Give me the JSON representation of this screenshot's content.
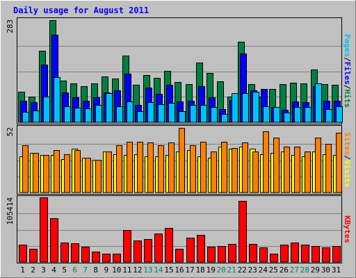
{
  "chart_data": {
    "type": "bar",
    "title": "Daily usage for August 2011",
    "categories": [
      "1",
      "2",
      "3",
      "4",
      "5",
      "6",
      "7",
      "8",
      "9",
      "10",
      "11",
      "12",
      "13",
      "14",
      "15",
      "16",
      "17",
      "18",
      "19",
      "20",
      "21",
      "22",
      "23",
      "24",
      "25",
      "26",
      "27",
      "28",
      "29",
      "30",
      "31"
    ],
    "weekend_days": [
      "6",
      "7",
      "13",
      "14",
      "20",
      "21",
      "27",
      "28"
    ],
    "panels": [
      {
        "id": "requests",
        "scale_max": 283,
        "scale_label": "283",
        "series": [
          {
            "name": "Hits",
            "color": "#008040",
            "values": [
              85,
              72,
              199,
              283,
              115,
              107,
              100,
              107,
              128,
              122,
              185,
              104,
              130,
              124,
              142,
              112,
              105,
              165,
              136,
              113,
              71,
              224,
              106,
              72,
              92,
              105,
              109,
              107,
              146,
              105,
              104
            ]
          },
          {
            "name": "Files",
            "color": "#0000ff",
            "values": [
              60,
              55,
              160,
              242,
              82,
              70,
              59,
              70,
              82,
              89,
              135,
              49,
              96,
              79,
              103,
              58,
              59,
              100,
              69,
              36,
              62,
              190,
              88,
              93,
              43,
              34,
              58,
              56,
              100,
              60,
              59
            ]
          },
          {
            "name": "Pages",
            "color": "#00c0ff",
            "values": [
              28,
              33,
              72,
              126,
              45,
              40,
              38,
              48,
              80,
              45,
              58,
              30,
              55,
              50,
              53,
              30,
              48,
              48,
              43,
              24,
              80,
              80,
              84,
              45,
              43,
              27,
              43,
              42,
              107,
              37,
              45
            ]
          }
        ]
      },
      {
        "id": "visits",
        "scale_max": 52,
        "scale_label": "52",
        "series": [
          {
            "name": "Visits",
            "color": "#ffff00",
            "values": [
              29,
              32,
              30,
              30,
              27,
              35,
              28,
              26,
              33,
              31,
              30,
              31,
              29,
              29,
              30,
              33,
              34,
              29,
              28,
              37,
              35,
              37,
              35,
              31,
              32,
              33,
              30,
              29,
              33,
              31,
              30
            ]
          },
          {
            "name": "Sites",
            "color": "#ff8000",
            "values": [
              38,
              32,
              30,
              34,
              31,
              34,
              28,
              26,
              33,
              38,
              41,
              41,
              40,
              38,
              40,
              52,
              38,
              41,
              33,
              41,
              36,
              40,
              33,
              49,
              44,
              37,
              37,
              33,
              44,
              39,
              48
            ]
          }
        ]
      },
      {
        "id": "kbytes",
        "scale_max": 105414,
        "scale_label": "105414",
        "series": [
          {
            "name": "KBytes",
            "color": "#ff0000",
            "values": [
              28000,
              21000,
              105414,
              71000,
              32000,
              31000,
              25000,
              17000,
              14000,
              14000,
              52000,
              35000,
              37000,
              46000,
              56000,
              22000,
              40000,
              44000,
              25000,
              26000,
              30000,
              100000,
              29000,
              24000,
              14000,
              28000,
              32000,
              28000,
              26000,
              24000,
              26000
            ]
          }
        ]
      }
    ],
    "legend_colors": {
      "label_top": "#008040",
      "separator": "#000000"
    },
    "colors": {
      "background": "#c0c0c0",
      "plot_bg": "#c0c0c0",
      "grid": "#808080",
      "title": "#0000ff",
      "weekday_label": "#000000",
      "weekend_label": "#00805c",
      "frame_light": "#ffffff",
      "frame_dark": "#808080"
    },
    "grid": true
  }
}
